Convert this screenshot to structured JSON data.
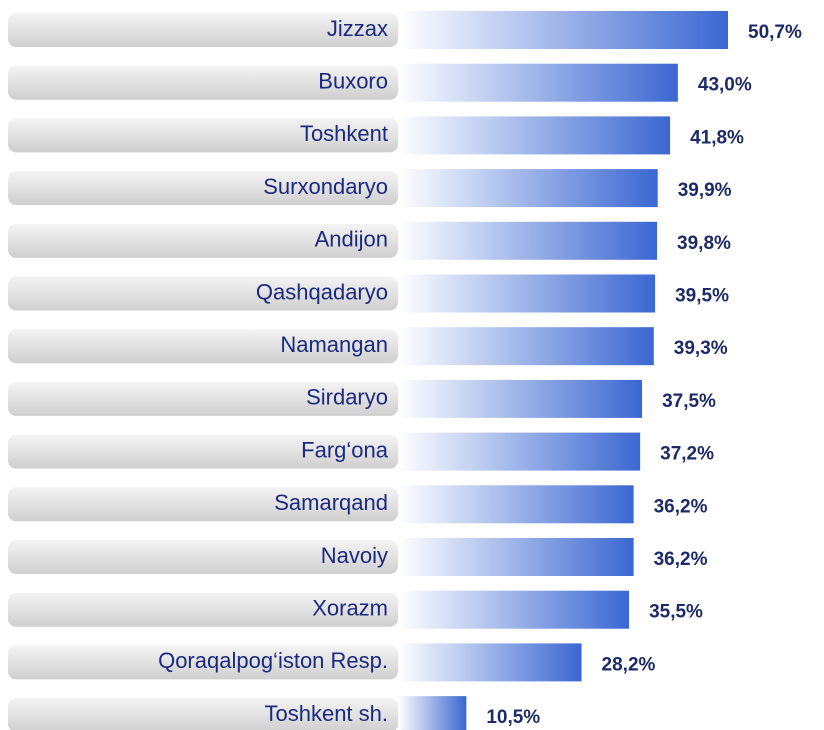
{
  "chart_data": {
    "type": "bar",
    "categories": [
      "Jizzax",
      "Buxoro",
      "Toshkent",
      "Surxondaryo",
      "Andijon",
      "Qashqadaryo",
      "Namangan",
      "Sirdaryo",
      "Farg‘ona",
      "Samarqand",
      "Navoiy",
      "Xorazm",
      "Qoraqalpog‘iston Resp.",
      "Toshkent sh."
    ],
    "values": [
      50.7,
      43.0,
      41.8,
      39.9,
      39.8,
      39.5,
      39.3,
      37.5,
      37.2,
      36.2,
      36.2,
      35.5,
      28.2,
      10.5
    ],
    "value_labels": [
      "50,7%",
      "43,0%",
      "41,8%",
      "39,9%",
      "39,8%",
      "39,5%",
      "39,3%",
      "37,5%",
      "37,2%",
      "36,2%",
      "36,2%",
      "35,5%",
      "28,2%",
      "10,5%"
    ],
    "color": "#3b67d1"
  }
}
